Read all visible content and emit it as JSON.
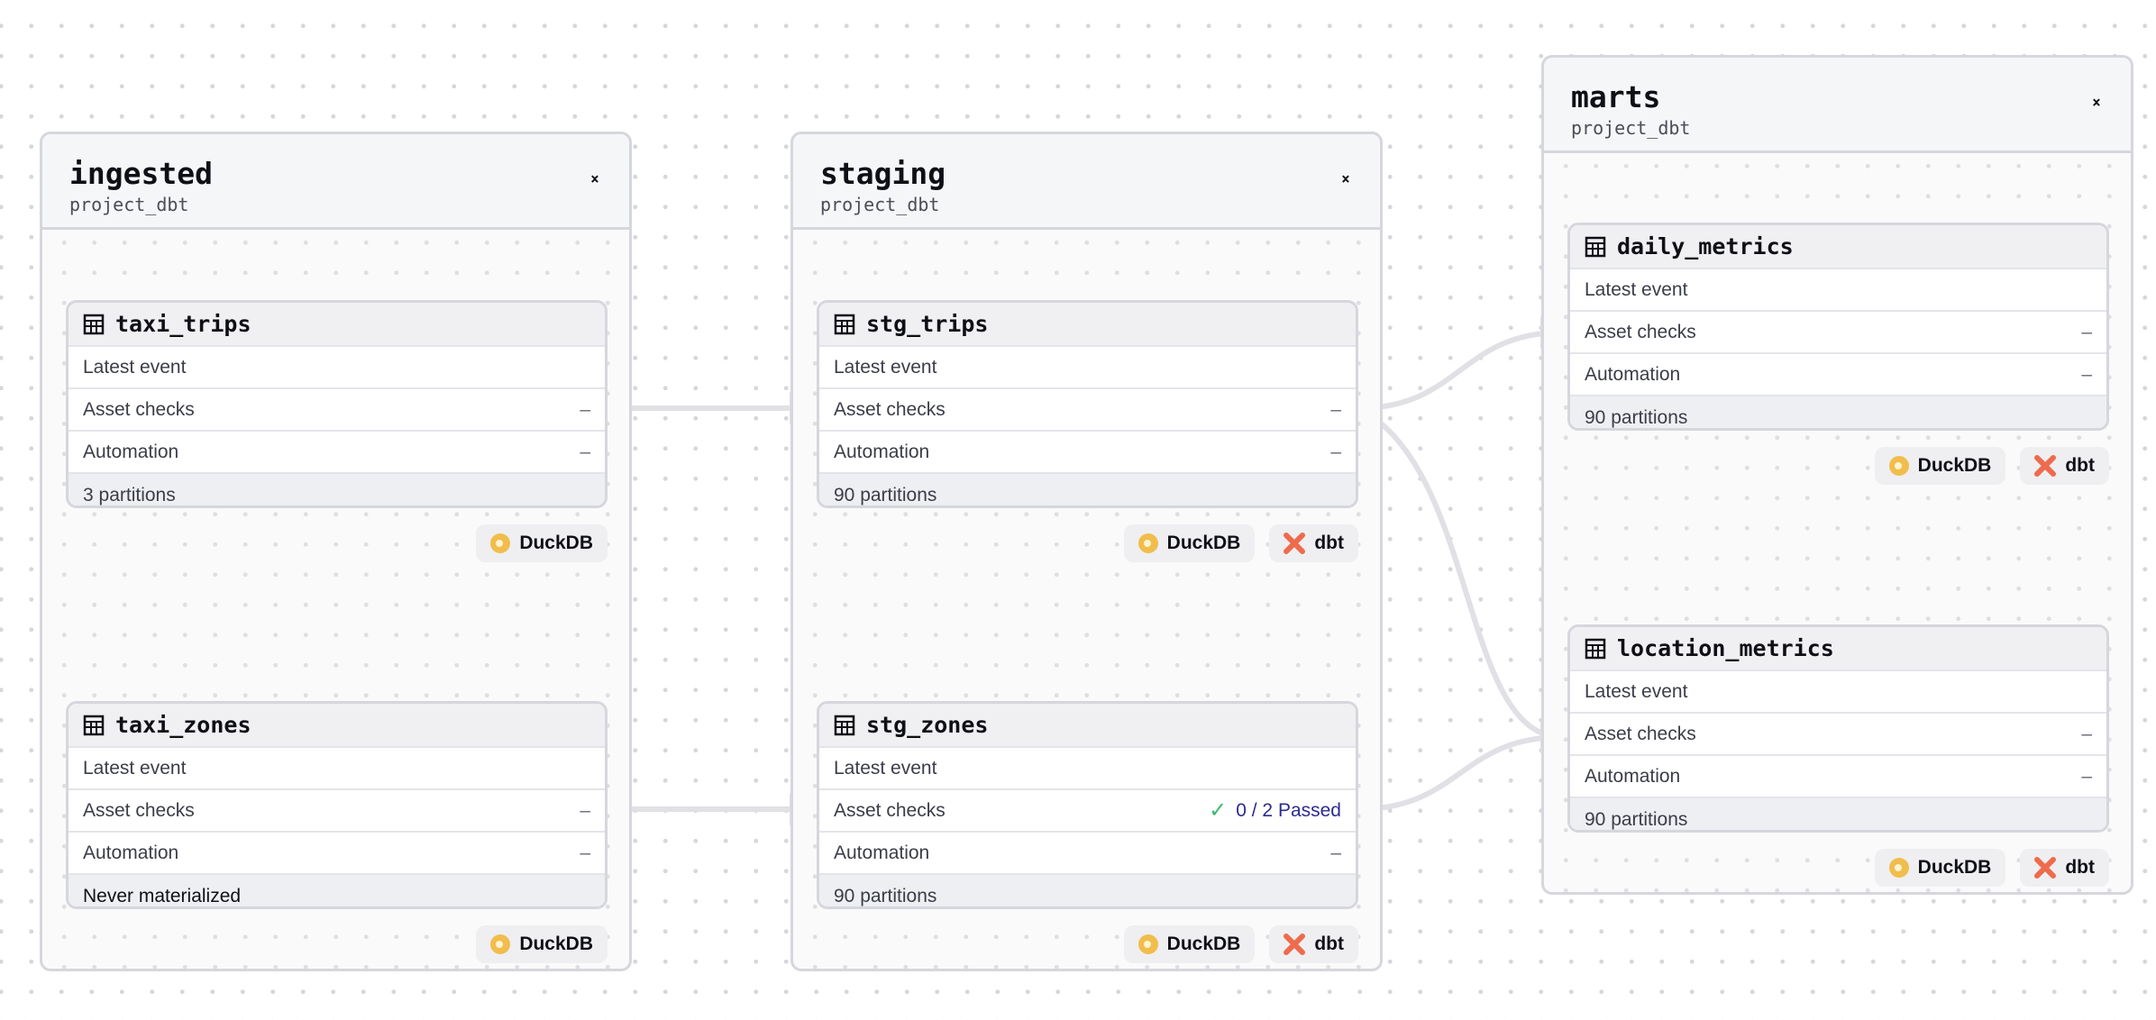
{
  "groups": {
    "ingested": {
      "title": "ingested",
      "subtitle": "project_dbt"
    },
    "staging": {
      "title": "staging",
      "subtitle": "project_dbt"
    },
    "marts": {
      "title": "marts",
      "subtitle": "project_dbt"
    }
  },
  "toggle_icon": "⌄⌃",
  "row_labels": {
    "latest": "Latest event",
    "checks": "Asset checks",
    "automation": "Automation"
  },
  "dash": "–",
  "nodes": {
    "taxi_trips": {
      "name": "taxi_trips",
      "checks": "–",
      "automation": "–",
      "footer": "3 partitions"
    },
    "taxi_zones": {
      "name": "taxi_zones",
      "checks": "–",
      "automation": "–",
      "footer": "Never materialized"
    },
    "stg_trips": {
      "name": "stg_trips",
      "checks": "–",
      "automation": "–",
      "footer": "90 partitions"
    },
    "stg_zones": {
      "name": "stg_zones",
      "checks": "0 / 2 Passed",
      "automation": "–",
      "footer": "90 partitions"
    },
    "daily_metrics": {
      "name": "daily_metrics",
      "checks": "–",
      "automation": "–",
      "footer": "90 partitions"
    },
    "location_metrics": {
      "name": "location_metrics",
      "checks": "–",
      "automation": "–",
      "footer": "90 partitions"
    }
  },
  "tags": {
    "duckdb": "DuckDB",
    "dbt": "dbt"
  },
  "colors": {
    "duckdb": "#f1bd4c",
    "dbt": "#ee6b4d",
    "passed_check": "#3dbb6b",
    "edge": "#e0e0e5"
  }
}
